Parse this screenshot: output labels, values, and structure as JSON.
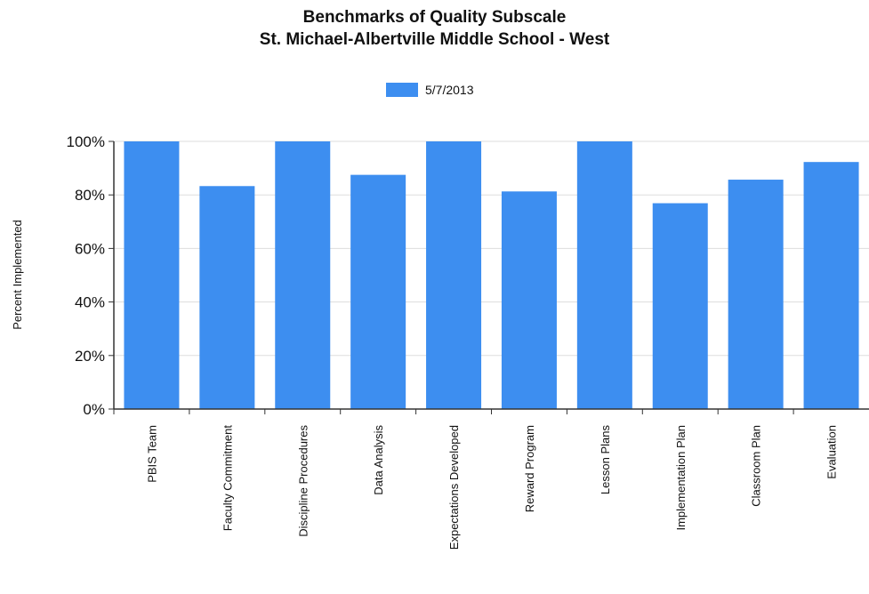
{
  "chart_data": {
    "type": "bar",
    "title": "Benchmarks of Quality Subscale",
    "subtitle": "St. Michael-Albertville Middle School - West",
    "xlabel": "",
    "ylabel": "Percent Implemented",
    "ylim": [
      0,
      100
    ],
    "y_ticks": [
      0,
      20,
      40,
      60,
      80,
      100
    ],
    "y_tick_labels": [
      "0%",
      "20%",
      "40%",
      "60%",
      "80%",
      "100%"
    ],
    "grid": true,
    "legend_position": "top-center",
    "categories": [
      "PBIS Team",
      "Faculty Commitment",
      "Discipline Procedures",
      "Data Analysis",
      "Expectations Developed",
      "Reward Program",
      "Lesson Plans",
      "Implementation Plan",
      "Classroom Plan",
      "Evaluation"
    ],
    "series": [
      {
        "name": "5/7/2013",
        "color": "#3d8ef0",
        "values": [
          100,
          83.3,
          100,
          87.5,
          100,
          81.3,
          100,
          76.9,
          85.7,
          92.3
        ]
      }
    ]
  }
}
